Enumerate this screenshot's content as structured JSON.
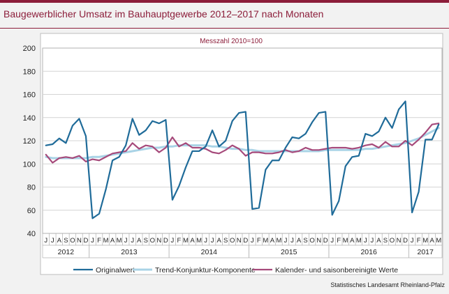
{
  "header": {
    "title": "Baugewerblicher Umsatz im Bauhauptgewerbe 2012–2017 nach Monaten"
  },
  "footer": {
    "source": "Statistisches Landesamt Rheinland-Pfalz"
  },
  "colors": {
    "accent": "#8c1d3a",
    "originalwert": "#1f6b99",
    "trend": "#a9d3e6",
    "kalender": "#a64a7b"
  },
  "chart_data": {
    "type": "line",
    "subtitle": "Messzahl 2010=100",
    "ylim": [
      40,
      200
    ],
    "yticks": [
      40,
      60,
      80,
      100,
      120,
      140,
      160,
      180,
      200
    ],
    "grid": true,
    "legend_position": "bottom",
    "month_labels": [
      "J",
      "J",
      "A",
      "S",
      "O",
      "N",
      "D",
      "J",
      "F",
      "M",
      "A",
      "M",
      "J",
      "J",
      "A",
      "S",
      "O",
      "N",
      "D",
      "J",
      "F",
      "M",
      "A",
      "M",
      "J",
      "J",
      "A",
      "S",
      "O",
      "N",
      "D",
      "J",
      "F",
      "M",
      "A",
      "M",
      "J",
      "J",
      "A",
      "S",
      "O",
      "N",
      "D",
      "J",
      "F",
      "M",
      "A",
      "M",
      "J",
      "J",
      "A",
      "S",
      "O",
      "N",
      "D",
      "J",
      "F",
      "M",
      "A",
      "M"
    ],
    "years": [
      {
        "label": "2012",
        "start": 0,
        "count": 7
      },
      {
        "label": "2013",
        "start": 7,
        "count": 12
      },
      {
        "label": "2014",
        "start": 19,
        "count": 12
      },
      {
        "label": "2015",
        "start": 31,
        "count": 12
      },
      {
        "label": "2016",
        "start": 43,
        "count": 12
      },
      {
        "label": "2017",
        "start": 55,
        "count": 5
      }
    ],
    "series": [
      {
        "name": "Originalwert",
        "color": "#1f6b99",
        "values": [
          116,
          117,
          122,
          118,
          133,
          139,
          124,
          53,
          57,
          78,
          103,
          106,
          116,
          139,
          125,
          129,
          137,
          135,
          138,
          69,
          81,
          97,
          111,
          111,
          115,
          129,
          115,
          120,
          137,
          144,
          145,
          61,
          62,
          95,
          103,
          103,
          114,
          123,
          122,
          126,
          136,
          144,
          145,
          56,
          68,
          98,
          106,
          107,
          126,
          124,
          128,
          140,
          131,
          147,
          154,
          58,
          76,
          121,
          121,
          134
        ]
      },
      {
        "name": "Trend-Konjunktur-Komponente",
        "color": "#a9d3e6",
        "values": [
          106,
          105,
          105,
          105,
          105,
          105,
          105,
          106,
          106,
          107,
          108,
          109,
          110,
          111,
          112,
          113,
          114,
          114,
          115,
          115,
          116,
          116,
          116,
          116,
          116,
          115,
          115,
          114,
          113,
          113,
          112,
          112,
          111,
          111,
          111,
          111,
          111,
          111,
          111,
          111,
          111,
          111,
          112,
          112,
          112,
          112,
          112,
          112,
          113,
          113,
          114,
          115,
          116,
          117,
          118,
          120,
          122,
          125,
          128,
          131
        ]
      },
      {
        "name": "Kalender- und saisonbereinigte Werte",
        "color": "#a64a7b",
        "values": [
          108,
          101,
          105,
          106,
          105,
          107,
          102,
          104,
          103,
          106,
          109,
          110,
          111,
          118,
          113,
          116,
          115,
          110,
          114,
          123,
          115,
          118,
          114,
          114,
          113,
          110,
          109,
          112,
          116,
          113,
          107,
          110,
          110,
          109,
          109,
          110,
          112,
          110,
          111,
          114,
          112,
          112,
          113,
          114,
          114,
          114,
          113,
          114,
          116,
          117,
          114,
          119,
          115,
          115,
          120,
          116,
          121,
          127,
          134,
          135
        ]
      }
    ]
  }
}
